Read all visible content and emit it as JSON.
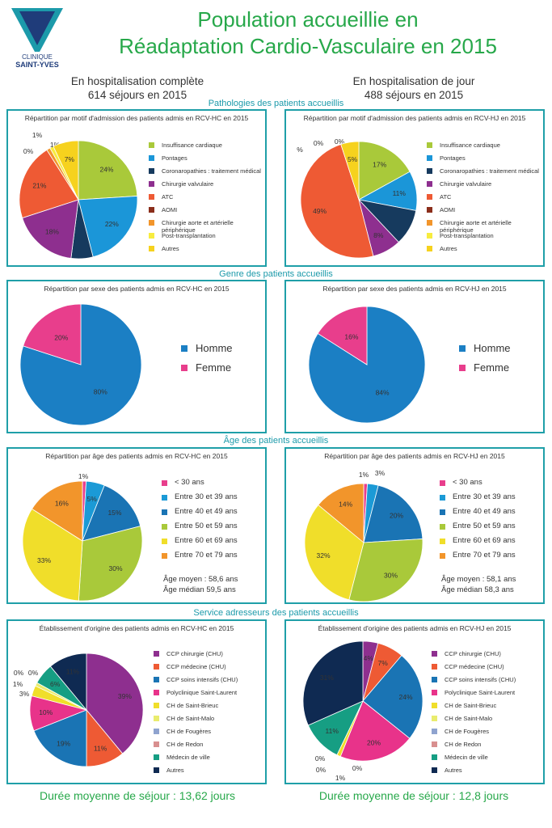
{
  "logo": {
    "line1": "CLINIQUE",
    "line2": "SAINT-YVES"
  },
  "title": {
    "line1": "Population accueillie en",
    "line2": "Réadaptation Cardio-Vasculaire en 2015"
  },
  "left_header": {
    "line1": "En hospitalisation complète",
    "line2": "614 séjours en 2015"
  },
  "right_header": {
    "line1": "En hospitalisation de jour",
    "line2": "488 séjours en 2015"
  },
  "sections": {
    "pathologies": "Pathologies des patients accueillis",
    "genre": "Genre des patients accueillis",
    "age": "Âge des patients accueillis",
    "service": "Service adresseurs des patients accueillis"
  },
  "colors": {
    "green": "#27a84a",
    "teal": "#1f9fa8"
  },
  "stats": {
    "hc_moyen": "Âge moyen : 58,6 ans",
    "hc_median": "Âge médian 59,5 ans",
    "hj_moyen": "Âge moyen : 58,1 ans",
    "hj_median": "Âge médian 58,3 ans"
  },
  "duree": {
    "hc": "Durée moyenne de séjour : 13,62 jours",
    "hj": "Durée moyenne de séjour : 12,8 jours"
  },
  "chart_data": [
    {
      "id": "patho_hc",
      "type": "pie",
      "title": "Répartition par motif d'admission des patients admis en RCV-HC en 2015",
      "categories": [
        "Insuffisance cardiaque",
        "Pontages",
        "Coronaropathies : traitement médical",
        "Chirurgie valvulaire",
        "ATC",
        "AOMI",
        "Chirurgie aorte et artérielle périphérique",
        "Post-transplantation",
        "Autres"
      ],
      "colors": [
        "#a9c93a",
        "#1b96d8",
        "#163a5e",
        "#8e2f8f",
        "#ee5a34",
        "#8b2e1b",
        "#f2952b",
        "#f7ec3f",
        "#f6d21e"
      ],
      "values": [
        24,
        22,
        6,
        18,
        21,
        0,
        1,
        1,
        7
      ],
      "labels": [
        "24%",
        "22%",
        "",
        "18%",
        "21%",
        "0%",
        "1%",
        "1%",
        "7%"
      ]
    },
    {
      "id": "patho_hj",
      "type": "pie",
      "title": "Répartition par motif d'admission des patients admis en RCV-HJ en 2015",
      "categories": [
        "Insuffisance cardiaque",
        "Pontages",
        "Coronaropathies : traitement médical",
        "Chirurgie valvulaire",
        "ATC",
        "AOMI",
        "Chirurgie aorte et artérielle périphérique",
        "Post-transplantation",
        "Autres"
      ],
      "colors": [
        "#a9c93a",
        "#1b96d8",
        "#163a5e",
        "#8e2f8f",
        "#ee5a34",
        "#8b2e1b",
        "#f2952b",
        "#f7ec3f",
        "#f6d21e"
      ],
      "values": [
        17,
        11,
        10,
        8,
        49,
        0,
        0,
        0,
        5
      ],
      "labels": [
        "17%",
        "11%",
        "",
        "8%",
        "49%",
        "%",
        "0%",
        "0%",
        "5%"
      ]
    },
    {
      "id": "sexe_hc",
      "type": "pie",
      "title": "Répartition par sexe des patients admis en RCV-HC en 2015",
      "categories": [
        "Homme",
        "Femme"
      ],
      "colors": [
        "#1b7fc4",
        "#e83e8c"
      ],
      "values": [
        80,
        20
      ],
      "labels": [
        "80%",
        "20%"
      ]
    },
    {
      "id": "sexe_hj",
      "type": "pie",
      "title": "Répartition par sexe des patients admis en RCV-HJ en 2015",
      "categories": [
        "Homme",
        "Femme"
      ],
      "colors": [
        "#1b7fc4",
        "#e83e8c"
      ],
      "values": [
        84,
        16
      ],
      "labels": [
        "84%",
        "16%"
      ]
    },
    {
      "id": "age_hc",
      "type": "pie",
      "title": "Répartition par âge des patients admis en RCV-HC en 2015",
      "categories": [
        "< 30 ans",
        "Entre 30 et 39 ans",
        "Entre 40 et 49 ans",
        "Entre 50 et 59 ans",
        "Entre 60 et 69 ans",
        "Entre 70 et 79 ans"
      ],
      "colors": [
        "#e83e8c",
        "#1b9ad6",
        "#1a74b4",
        "#a9c93a",
        "#f0de2a",
        "#f2952b"
      ],
      "values": [
        1,
        5,
        15,
        30,
        33,
        16
      ],
      "labels": [
        "1%",
        "5%",
        "15%",
        "30%",
        "33%",
        "16%"
      ]
    },
    {
      "id": "age_hj",
      "type": "pie",
      "title": "Répartition par âge des patients admis en RCV-HJ en 2015",
      "categories": [
        "< 30 ans",
        "Entre 30 et 39 ans",
        "Entre 40 et 49 ans",
        "Entre 50 et 59 ans",
        "Entre 60 et 69 ans",
        "Entre 70 et 79 ans"
      ],
      "colors": [
        "#e83e8c",
        "#1b9ad6",
        "#1a74b4",
        "#a9c93a",
        "#f0de2a",
        "#f2952b"
      ],
      "values": [
        1,
        3,
        20,
        30,
        32,
        14
      ],
      "labels": [
        "1%",
        "3%",
        "20%",
        "30%",
        "32%",
        "14%"
      ]
    },
    {
      "id": "origine_hc",
      "type": "pie",
      "title": "Établissement d'origine des patients admis en RCV-HC en 2015",
      "categories": [
        "CCP chirurgie (CHU)",
        "CCP médecine (CHU)",
        "CCP soins intensifs (CHU)",
        "Polyclinique Saint-Laurent",
        "CH de Saint-Brieuc",
        "CH de Saint-Malo",
        "CH de Fougères",
        "CH de Redon",
        "Médecin de ville",
        "Autres"
      ],
      "colors": [
        "#8e2f8f",
        "#ee5a34",
        "#1a74b4",
        "#e8338a",
        "#f0de2a",
        "#e9ec6e",
        "#8fa3cf",
        "#d88f8f",
        "#169e83",
        "#0f2a52"
      ],
      "values": [
        39,
        11,
        19,
        10,
        3,
        1,
        0,
        0,
        6,
        11
      ],
      "labels": [
        "39%",
        "11%",
        "19%",
        "10%",
        "3%",
        "1%",
        "0%",
        "0%",
        "6%",
        "11%"
      ]
    },
    {
      "id": "origine_hj",
      "type": "pie",
      "title": "Établissement d'origine des patients admis en RCV-HJ en 2015",
      "categories": [
        "CCP chirurgie (CHU)",
        "CCP médecine (CHU)",
        "CCP soins intensifs (CHU)",
        "Polyclinique Saint-Laurent",
        "CH de Saint-Brieuc",
        "CH de Saint-Malo",
        "CH de Fougères",
        "CH de Redon",
        "Médecin de ville",
        "Autres"
      ],
      "colors": [
        "#8e2f8f",
        "#ee5a34",
        "#1a74b4",
        "#e8338a",
        "#f0de2a",
        "#e9ec6e",
        "#8fa3cf",
        "#d88f8f",
        "#169e83",
        "#0f2a52"
      ],
      "values": [
        4,
        7,
        24,
        20,
        1,
        0,
        0,
        0,
        11,
        31
      ],
      "labels": [
        "4%",
        "7%",
        "24%",
        "20%",
        "1%",
        "0%",
        "0%",
        "0%",
        "11%",
        "31%"
      ]
    }
  ]
}
